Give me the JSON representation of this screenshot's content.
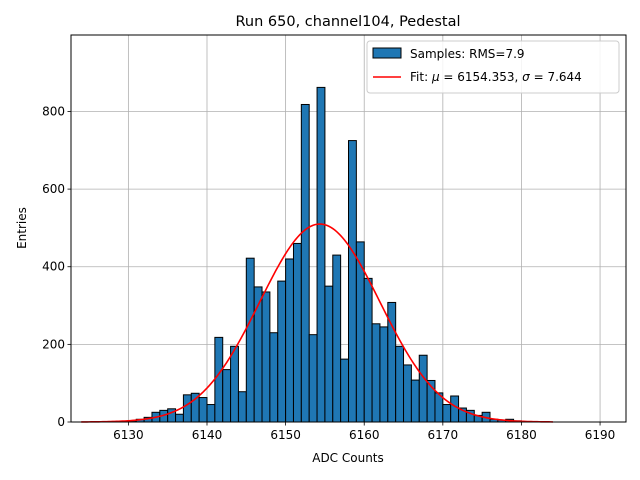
{
  "chart_data": {
    "type": "bar",
    "title": "Run 650, channel104, Pedestal",
    "xlabel": "ADC Counts",
    "ylabel": "Entries",
    "xlim": [
      6122.7,
      6193.3
    ],
    "ylim": [
      0,
      997
    ],
    "x_ticks": [
      6130,
      6140,
      6150,
      6160,
      6170,
      6180,
      6190
    ],
    "y_ticks": [
      0,
      200,
      400,
      600,
      800
    ],
    "grid": true,
    "bin_width": 1,
    "bin_start": 6130,
    "values": [
      3,
      7,
      12,
      25,
      30,
      34,
      20,
      70,
      74,
      63,
      45,
      218,
      135,
      195,
      78,
      422,
      348,
      335,
      230,
      363,
      420,
      460,
      818,
      225,
      862,
      350,
      430,
      162,
      725,
      464,
      370,
      253,
      245,
      308,
      195,
      147,
      108,
      172,
      107,
      75,
      45,
      67,
      36,
      30,
      17,
      25,
      7,
      5,
      7,
      3
    ],
    "fit": {
      "mu": 6154.353,
      "sigma": 7.644,
      "amplitude": 510,
      "x_range": [
        6124,
        6184
      ]
    },
    "colors": {
      "bar": "#1f77b4",
      "bar_edge": "#000000",
      "fit": "#ff0000",
      "grid": "#b0b0b0"
    },
    "legend": {
      "position": "upper right",
      "samples_label": "Samples: RMS=7.9",
      "fit_label_prefix": "Fit: ",
      "mu_symbol": "μ",
      "fit_label_mid": " = 6154.353, ",
      "sigma_symbol": "σ",
      "fit_label_suffix": " = 7.644"
    }
  }
}
